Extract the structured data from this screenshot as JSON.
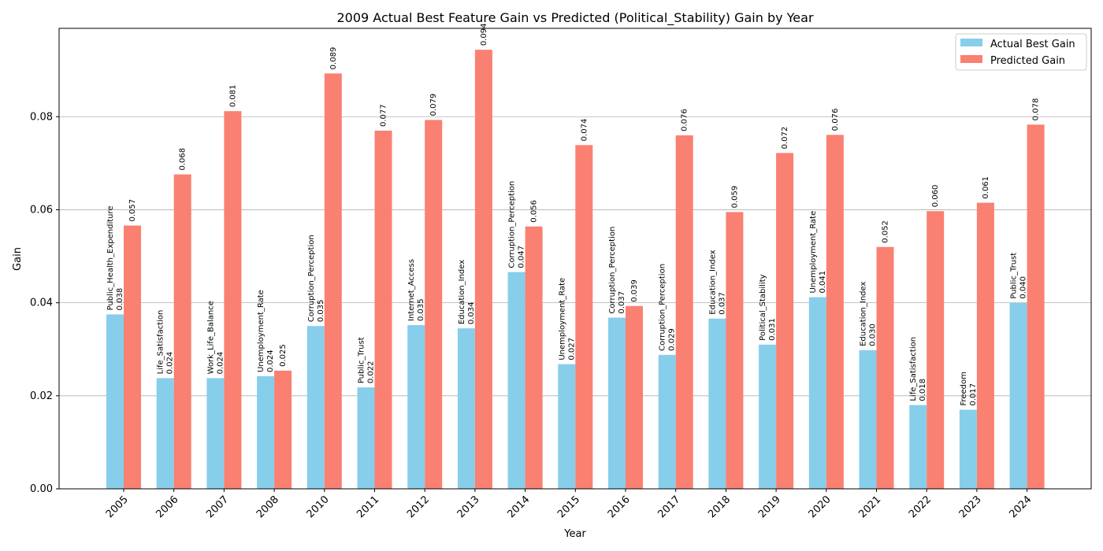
{
  "chart_data": {
    "type": "bar",
    "title": "2009 Actual Best Feature Gain vs Predicted (Political_Stability) Gain by Year",
    "xlabel": "Year",
    "ylabel": "Gain",
    "categories": [
      "2005",
      "2006",
      "2007",
      "2008",
      "2010",
      "2011",
      "2012",
      "2013",
      "2014",
      "2015",
      "2016",
      "2017",
      "2018",
      "2019",
      "2020",
      "2021",
      "2022",
      "2023",
      "2024"
    ],
    "ylim": [
      0,
      0.099
    ],
    "yticks": [
      "0.00",
      "0.02",
      "0.04",
      "0.06",
      "0.08"
    ],
    "grid": "y",
    "legend_position": "top-right",
    "series": [
      {
        "name": "Actual Best Gain",
        "color": "#87CEEB",
        "values": [
          0.0375,
          0.0238,
          0.0238,
          0.0242,
          0.035,
          0.0218,
          0.0352,
          0.0345,
          0.0466,
          0.0268,
          0.0368,
          0.0288,
          0.0366,
          0.031,
          0.0412,
          0.0298,
          0.018,
          0.017,
          0.04
        ],
        "value_labels": [
          "0.038",
          "0.024",
          "0.024",
          "0.024",
          "0.035",
          "0.022",
          "0.035",
          "0.034",
          "0.047",
          "0.027",
          "0.037",
          "0.029",
          "0.037",
          "0.031",
          "0.041",
          "0.030",
          "0.018",
          "0.017",
          "0.040"
        ],
        "feature_labels": [
          "Public_Health_Expenditure",
          "Life_Satisfaction",
          "Work_Life_Balance",
          "Unemployment_Rate",
          "Corruption_Perception",
          "Public_Trust",
          "Internet_Access",
          "Education_Index",
          "Corruption_Perception",
          "Unemployment_Rate",
          "Corruption_Perception",
          "Corruption_Perception",
          "Education_Index",
          "Political_Stability",
          "Unemployment_Rate",
          "Education_Index",
          "Life_Satisfaction",
          "Freedom",
          "Public_Trust"
        ]
      },
      {
        "name": "Predicted Gain",
        "color": "#FA8072",
        "values": [
          0.0566,
          0.0676,
          0.0812,
          0.0254,
          0.0893,
          0.077,
          0.0793,
          0.0944,
          0.0564,
          0.0739,
          0.0393,
          0.076,
          0.0595,
          0.0722,
          0.0761,
          0.052,
          0.0597,
          0.0615,
          0.0783
        ],
        "value_labels": [
          "0.057",
          "0.068",
          "0.081",
          "0.025",
          "0.089",
          "0.077",
          "0.079",
          "0.094",
          "0.056",
          "0.074",
          "0.039",
          "0.076",
          "0.059",
          "0.072",
          "0.076",
          "0.052",
          "0.060",
          "0.061",
          "0.078"
        ]
      }
    ]
  }
}
